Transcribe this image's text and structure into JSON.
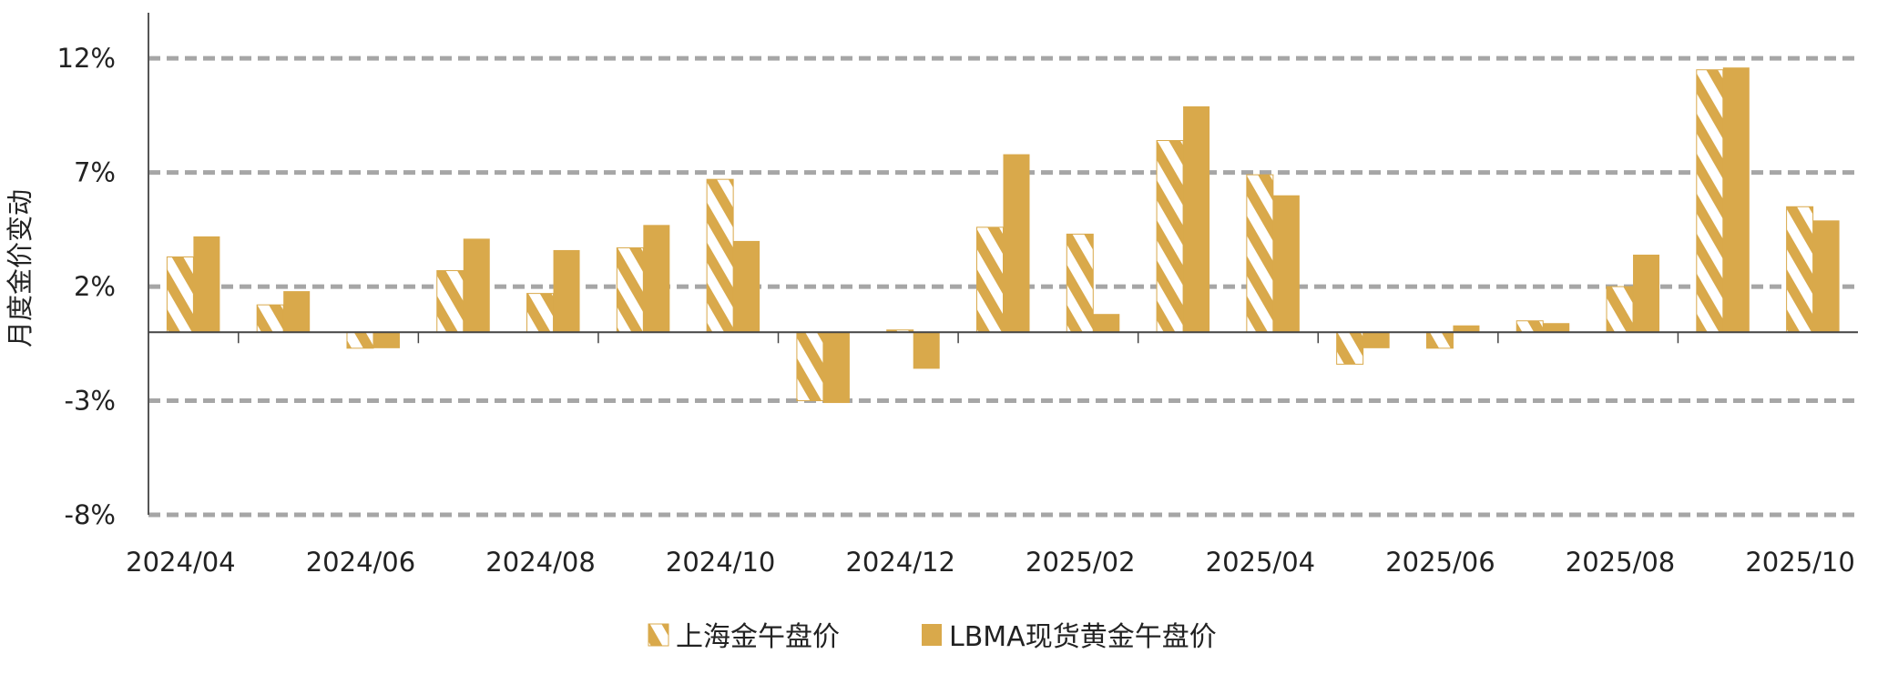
{
  "chart_data": {
    "type": "bar",
    "title": "",
    "xlabel": "",
    "ylabel": "月度金价变动",
    "ylim": [
      -8,
      14
    ],
    "yticks": [
      -8,
      -3,
      2,
      7,
      12
    ],
    "ytick_labels": [
      "-8%",
      "-3%",
      "2%",
      "7%",
      "12%"
    ],
    "grid": "horizontal dashed",
    "legend_position": "bottom",
    "categories": [
      "2024/04",
      "2024/05",
      "2024/06",
      "2024/07",
      "2024/08",
      "2024/09",
      "2024/10",
      "2024/11",
      "2024/12",
      "2025/01",
      "2025/02",
      "2025/03",
      "2025/04",
      "2025/05",
      "2025/06",
      "2025/07",
      "2025/08",
      "2025/09",
      "2025/10"
    ],
    "xtick_labels": [
      "2024/04",
      "2024/06",
      "2024/08",
      "2024/10",
      "2024/12",
      "2025/02",
      "2025/04",
      "2025/06",
      "2025/08",
      "2025/10"
    ],
    "series": [
      {
        "name": "上海金午盘价",
        "style": "hatched",
        "color": "#D9A94B",
        "values": [
          3.3,
          1.2,
          -0.7,
          2.7,
          1.7,
          3.7,
          6.7,
          -3.0,
          0.1,
          4.6,
          4.3,
          8.4,
          6.9,
          -1.4,
          -0.7,
          0.5,
          2.0,
          11.5,
          5.5
        ]
      },
      {
        "name": "LBMA现货黄金午盘价",
        "style": "solid",
        "color": "#D9A94B",
        "values": [
          4.2,
          1.8,
          -0.7,
          4.1,
          3.6,
          4.7,
          4.0,
          -3.1,
          -1.6,
          7.8,
          0.8,
          9.9,
          6.0,
          -0.7,
          0.3,
          0.4,
          3.4,
          11.6,
          4.9
        ]
      }
    ]
  }
}
